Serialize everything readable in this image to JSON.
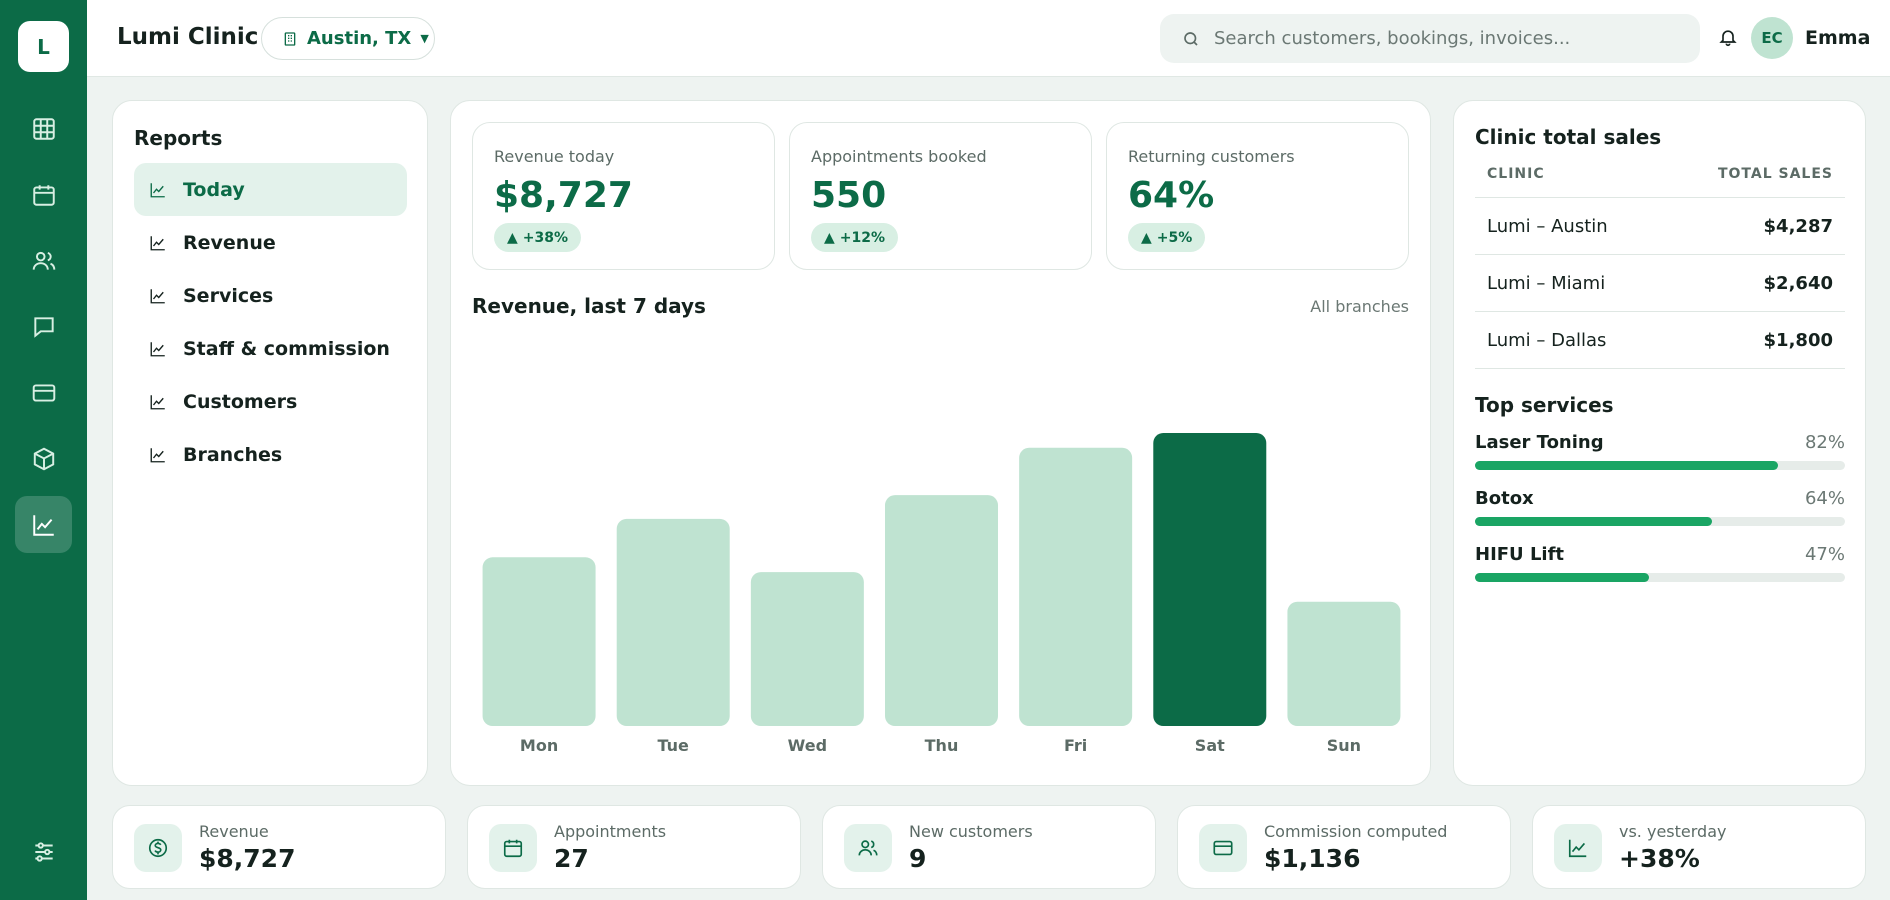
{
  "app": {
    "logo_letter": "L",
    "title": "Lumi Clinic"
  },
  "branch_selector": {
    "label": "Austin, TX"
  },
  "search": {
    "placeholder": "Search customers, bookings, invoices..."
  },
  "user": {
    "initials": "EC",
    "name": "Emma"
  },
  "rail": {
    "items": [
      {
        "icon": "grid-icon"
      },
      {
        "icon": "calendar-icon"
      },
      {
        "icon": "users-icon"
      },
      {
        "icon": "message-icon"
      },
      {
        "icon": "card-icon"
      },
      {
        "icon": "box-icon"
      },
      {
        "icon": "chart-icon",
        "active": true
      }
    ],
    "bottom_icon": "sliders-icon"
  },
  "reports": {
    "title": "Reports",
    "items": [
      {
        "label": "Today",
        "active": true
      },
      {
        "label": "Revenue"
      },
      {
        "label": "Services"
      },
      {
        "label": "Staff & commission"
      },
      {
        "label": "Customers"
      },
      {
        "label": "Branches"
      }
    ]
  },
  "kpis": [
    {
      "label": "Revenue today",
      "value": "$8,727",
      "delta": "+38%"
    },
    {
      "label": "Appointments booked",
      "value": "550",
      "delta": "+12%"
    },
    {
      "label": "Returning customers",
      "value": "64%",
      "delta": "+5%"
    }
  ],
  "chart_title": "Revenue, last 7 days",
  "chart_scope": "All branches",
  "chart_data": {
    "type": "bar",
    "categories": [
      "Mon",
      "Tue",
      "Wed",
      "Thu",
      "Fri",
      "Sat",
      "Sun"
    ],
    "values": [
      57,
      70,
      52,
      78,
      94,
      99,
      42
    ],
    "highlight": "Sat",
    "colors": {
      "bar": "#bfe3d1",
      "highlight": "#0c6b47"
    },
    "grid": false
  },
  "clinic_sales": {
    "title": "Clinic total sales",
    "columns": [
      "CLINIC",
      "TOTAL SALES"
    ],
    "rows": [
      {
        "clinic": "Lumi – Austin",
        "total": "$4,287"
      },
      {
        "clinic": "Lumi – Miami",
        "total": "$2,640"
      },
      {
        "clinic": "Lumi – Dallas",
        "total": "$1,800"
      }
    ]
  },
  "top_services": {
    "title": "Top services",
    "items": [
      {
        "name": "Laser Toning",
        "percent": "82%",
        "fraction": 0.82
      },
      {
        "name": "Botox",
        "percent": "64%",
        "fraction": 0.64
      },
      {
        "name": "HIFU Lift",
        "percent": "47%",
        "fraction": 0.47
      }
    ]
  },
  "stats": [
    {
      "icon": "dollar-icon",
      "label": "Revenue",
      "value": "$8,727"
    },
    {
      "icon": "calendar-icon",
      "label": "Appointments",
      "value": "27"
    },
    {
      "icon": "users-icon",
      "label": "New customers",
      "value": "9"
    },
    {
      "icon": "card-icon",
      "label": "Commission computed",
      "value": "$1,136"
    },
    {
      "icon": "chart-icon",
      "label": "vs. yesterday",
      "value": "+38%"
    }
  ],
  "colors": {
    "accent": "#0c6b47",
    "accent_light": "#bfe3d1",
    "progress": "#1aa564"
  }
}
